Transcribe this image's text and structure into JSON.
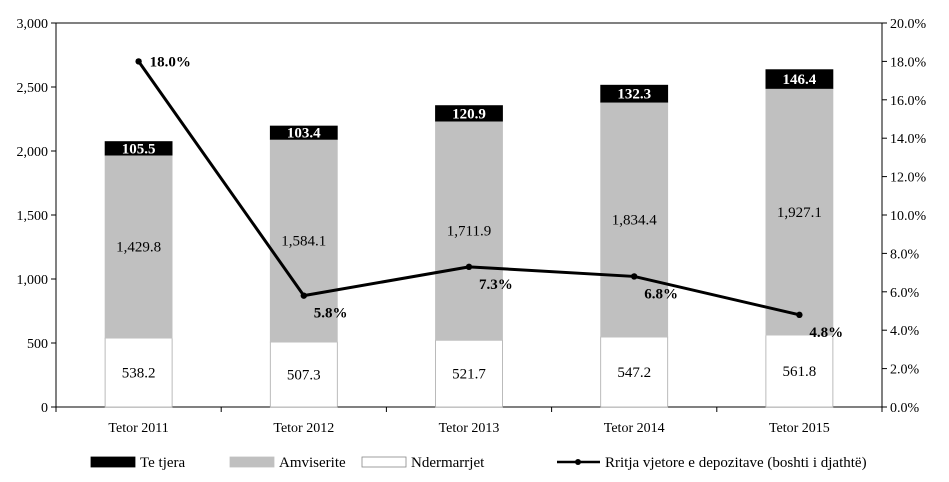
{
  "chart_data": {
    "type": "bar",
    "stacked": true,
    "categories": [
      "Tetor 2011",
      "Tetor 2012",
      "Tetor 2013",
      "Tetor 2014",
      "Tetor 2015"
    ],
    "series": [
      {
        "name": "Ndermarrjet",
        "color": "#ffffff",
        "values": [
          538.2,
          507.3,
          521.7,
          547.2,
          561.8
        ],
        "labels": [
          "538.2",
          "507.3",
          "521.7",
          "547.2",
          "561.8"
        ]
      },
      {
        "name": "Amviserite",
        "color": "#c0c0c0",
        "values": [
          1429.8,
          1584.1,
          1711.9,
          1834.4,
          1927.1
        ],
        "labels": [
          "1,429.8",
          "1,584.1",
          "1,711.9",
          "1,834.4",
          "1,927.1"
        ]
      },
      {
        "name": "Te tjera",
        "color": "#000000",
        "values": [
          105.5,
          103.4,
          120.9,
          132.3,
          146.4
        ],
        "labels": [
          "105.5",
          "103.4",
          "120.9",
          "132.3",
          "146.4"
        ]
      }
    ],
    "line": {
      "name": "Rritja vjetore e depozitave (boshti i djathtë)",
      "axis": "right",
      "values": [
        18.0,
        5.8,
        7.3,
        6.8,
        4.8
      ],
      "labels": [
        "18.0%",
        "5.8%",
        "7.3%",
        "6.8%",
        "4.8%"
      ]
    },
    "ylim": [
      0,
      3000
    ],
    "yticks": [
      "0",
      "500",
      "1,000",
      "1,500",
      "2,000",
      "2,500",
      "3,000"
    ],
    "y2lim": [
      0,
      20
    ],
    "y2ticks": [
      "0.0%",
      "2.0%",
      "4.0%",
      "6.0%",
      "8.0%",
      "10.0%",
      "12.0%",
      "14.0%",
      "16.0%",
      "18.0%",
      "20.0%"
    ],
    "legend_order": [
      "Te tjera",
      "Amviserite",
      "Ndermarrjet",
      "Rritja vjetore e depozitave (boshti i djathtë)"
    ],
    "legend_position": "bottom",
    "grid": false
  }
}
